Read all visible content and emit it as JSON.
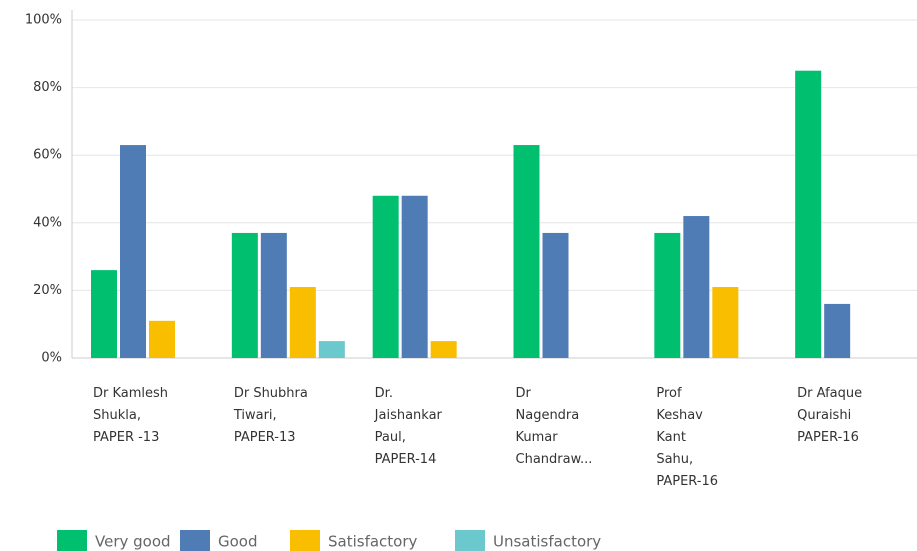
{
  "chart_data": {
    "type": "bar",
    "categories": [
      "Dr Kamlesh\nShukla,\nPAPER -13",
      "Dr Shubhra\nTiwari,\nPAPER-13",
      "Dr.\nJaishankar\nPaul,\nPAPER-14",
      "Dr\nNagendra\nKumar\nChandraw...",
      "Prof\nKeshav\nKant\nSahu,\nPAPER-16",
      "Dr Afaque\nQuraishi\nPAPER-16"
    ],
    "series": [
      {
        "name": "Very good",
        "color": "#00bf6f",
        "values": [
          26,
          37,
          48,
          63,
          37,
          85
        ]
      },
      {
        "name": "Good",
        "color": "#507cb6",
        "values": [
          63,
          37,
          48,
          37,
          42,
          16
        ]
      },
      {
        "name": "Satisfactory",
        "color": "#f9be00",
        "values": [
          11,
          21,
          5,
          0,
          21,
          0
        ]
      },
      {
        "name": "Unsatisfactory",
        "color": "#6bc8cd",
        "values": [
          0,
          5,
          0,
          0,
          0,
          0
        ]
      }
    ],
    "ylim": [
      0,
      100
    ],
    "yticks": [
      {
        "value": 0,
        "label": "0%"
      },
      {
        "value": 20,
        "label": "20%"
      },
      {
        "value": 40,
        "label": "40%"
      },
      {
        "value": 60,
        "label": "60%"
      },
      {
        "value": 80,
        "label": "80%"
      },
      {
        "value": 100,
        "label": "100%"
      }
    ],
    "grid": true
  }
}
